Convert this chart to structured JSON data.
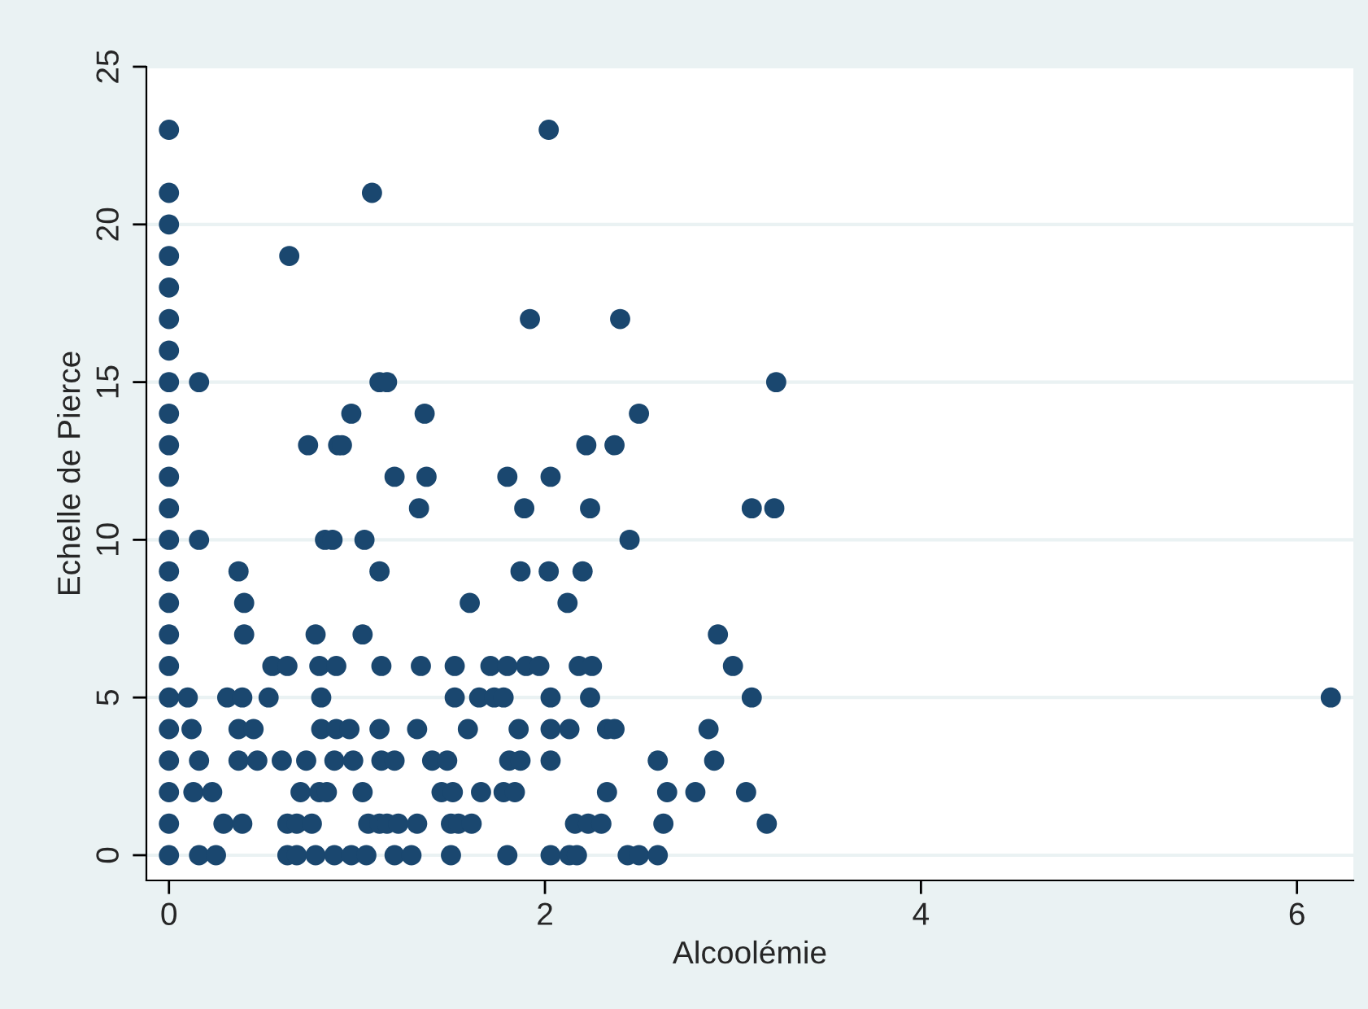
{
  "chart_data": {
    "type": "scatter",
    "xlabel": "Alcoolémie",
    "ylabel": "Echelle de Pierce",
    "x": [
      0,
      0.16,
      0.25,
      0.63,
      0.68,
      0.78,
      0.88,
      0.97,
      1.05,
      1.2,
      1.29,
      1.5,
      1.8,
      2.03,
      2.13,
      2.17,
      2.44,
      2.5,
      2.6,
      0,
      0.29,
      0.39,
      0.63,
      0.68,
      0.76,
      1.06,
      1.12,
      1.16,
      1.22,
      1.32,
      1.5,
      1.54,
      1.61,
      2.16,
      2.23,
      2.3,
      2.63,
      3.18,
      0,
      0.13,
      0.23,
      0.7,
      0.8,
      0.84,
      1.03,
      1.45,
      1.51,
      1.66,
      1.78,
      1.84,
      2.33,
      2.65,
      2.8,
      3.07,
      0,
      0.16,
      0.37,
      0.47,
      0.6,
      0.73,
      0.88,
      0.98,
      1.13,
      1.2,
      1.4,
      1.48,
      1.81,
      1.87,
      2.03,
      2.6,
      2.9,
      0,
      0.12,
      0.37,
      0.45,
      0.81,
      0.89,
      0.96,
      1.12,
      1.32,
      1.59,
      1.86,
      2.03,
      2.13,
      2.33,
      2.37,
      2.87,
      0,
      0.1,
      0.31,
      0.39,
      0.53,
      0.81,
      1.52,
      1.65,
      1.73,
      1.78,
      2.03,
      2.24,
      3.1,
      6.18,
      0,
      0.55,
      0.63,
      0.8,
      0.89,
      1.13,
      1.34,
      1.52,
      1.71,
      1.8,
      1.9,
      1.97,
      2.18,
      2.25,
      3.0,
      0,
      0.4,
      0.78,
      1.03,
      2.92,
      0,
      0.4,
      1.6,
      2.12,
      0,
      0.37,
      1.12,
      1.87,
      2.02,
      2.2,
      0,
      0.16,
      0.83,
      0.87,
      1.04,
      2.45,
      0,
      1.33,
      1.89,
      2.24,
      3.1,
      3.22,
      0,
      1.2,
      1.37,
      1.8,
      2.03,
      0,
      0.74,
      0.9,
      0.92,
      2.22,
      2.37,
      0,
      0.97,
      1.36,
      2.5,
      0,
      0.16,
      1.12,
      1.16,
      3.23,
      0,
      0,
      1.92,
      2.4,
      0,
      0,
      0.64,
      0,
      0,
      1.08,
      0,
      2.02
    ],
    "values": [
      0,
      0,
      0,
      0,
      0,
      0,
      0,
      0,
      0,
      0,
      0,
      0,
      0,
      0,
      0,
      0,
      0,
      0,
      0,
      1,
      1,
      1,
      1,
      1,
      1,
      1,
      1,
      1,
      1,
      1,
      1,
      1,
      1,
      1,
      1,
      1,
      1,
      1,
      2,
      2,
      2,
      2,
      2,
      2,
      2,
      2,
      2,
      2,
      2,
      2,
      2,
      2,
      2,
      2,
      3,
      3,
      3,
      3,
      3,
      3,
      3,
      3,
      3,
      3,
      3,
      3,
      3,
      3,
      3,
      3,
      3,
      4,
      4,
      4,
      4,
      4,
      4,
      4,
      4,
      4,
      4,
      4,
      4,
      4,
      4,
      4,
      4,
      5,
      5,
      5,
      5,
      5,
      5,
      5,
      5,
      5,
      5,
      5,
      5,
      5,
      5,
      6,
      6,
      6,
      6,
      6,
      6,
      6,
      6,
      6,
      6,
      6,
      6,
      6,
      6,
      6,
      7,
      7,
      7,
      7,
      7,
      8,
      8,
      8,
      8,
      9,
      9,
      9,
      9,
      9,
      9,
      10,
      10,
      10,
      10,
      10,
      10,
      11,
      11,
      11,
      11,
      11,
      11,
      12,
      12,
      12,
      12,
      12,
      13,
      13,
      13,
      13,
      13,
      13,
      14,
      14,
      14,
      14,
      15,
      15,
      15,
      15,
      15,
      16,
      17,
      17,
      17,
      18,
      19,
      19,
      20,
      21,
      21,
      23,
      23
    ],
    "color": "#1a476f",
    "marker": "circle",
    "xlim": [
      -0.12,
      6.3
    ],
    "xticks": [
      0,
      2,
      4,
      6
    ],
    "ylim": [
      -0.8,
      25
    ],
    "yticks": [
      0,
      5,
      10,
      15,
      20,
      25
    ],
    "grid": "y"
  }
}
